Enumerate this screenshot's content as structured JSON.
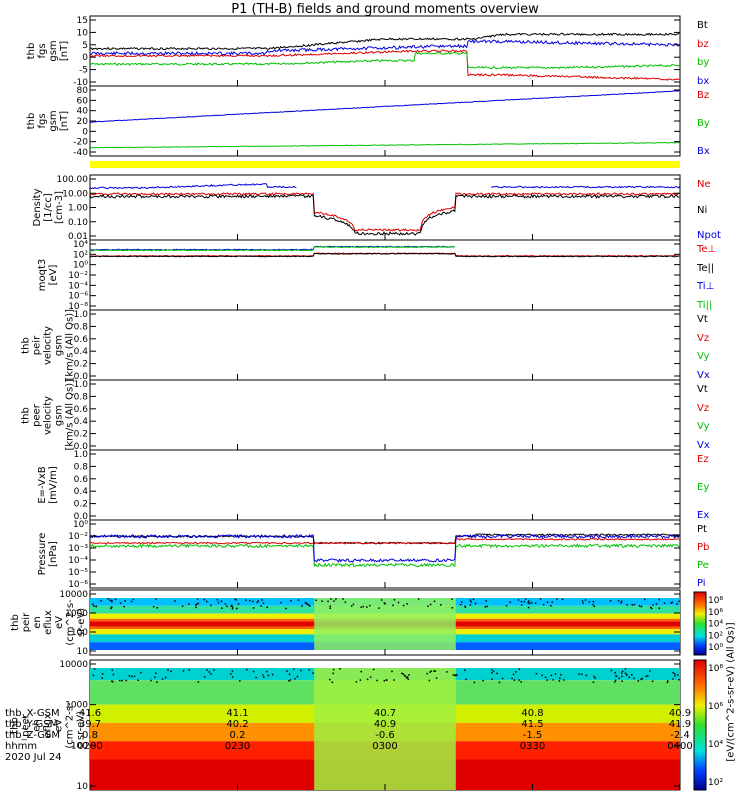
{
  "title": "P1 (TH-B) fields and ground moments overview",
  "panels": [
    {
      "id": "p1",
      "ylabel": [
        "thb",
        "fgs",
        "gsm",
        "[nT]"
      ],
      "ticks": [
        "15",
        "10",
        "5",
        "0",
        "-5",
        "-10"
      ],
      "legend": [
        {
          "t": "Bt",
          "c": "#000000"
        },
        {
          "t": "bz",
          "c": "#e00000"
        },
        {
          "t": "by",
          "c": "#00c000"
        },
        {
          "t": "bx",
          "c": "#0000e0"
        }
      ]
    },
    {
      "id": "p2",
      "ylabel": [
        "thb",
        "fgs",
        "gsm",
        "[nT]"
      ],
      "ticks": [
        "80",
        "60",
        "40",
        "20",
        "0",
        "-20",
        "-40"
      ],
      "legend": [
        {
          "t": "Bz",
          "c": "#e00000"
        },
        {
          "t": "By",
          "c": "#00c000"
        },
        {
          "t": "Bx",
          "c": "#0000e0"
        }
      ]
    },
    {
      "id": "p3",
      "ylabel": [
        "Density",
        "[1/cc]",
        "[cm-3]"
      ],
      "ticks": [
        "100.00",
        "10.00",
        "1.00",
        "0.10",
        "0.01"
      ],
      "legend": [
        {
          "t": "Ne",
          "c": "#e00000"
        },
        {
          "t": "Ni",
          "c": "#000000"
        },
        {
          "t": "Npot",
          "c": "#0000e0"
        }
      ]
    },
    {
      "id": "p4",
      "ylabel": [
        "moqt3",
        "[eV]"
      ],
      "ticks": [
        "10⁴",
        "10²",
        "10⁰",
        "10⁻²",
        "10⁻⁴",
        "10⁻⁶",
        "10⁻⁸"
      ],
      "legend": [
        {
          "t": "Te⊥",
          "c": "#e00000"
        },
        {
          "t": "Te||",
          "c": "#000000"
        },
        {
          "t": "Ti⊥",
          "c": "#0000e0"
        },
        {
          "t": "Ti||",
          "c": "#00c000"
        }
      ]
    },
    {
      "id": "p5",
      "ylabel": [
        "thb",
        "peir",
        "velocity",
        "gsm",
        "[km/s (All Qs)]"
      ],
      "ticks": [
        "1.0",
        "0.8",
        "0.6",
        "0.4",
        "0.2",
        "0.0"
      ],
      "legend": [
        {
          "t": "Vt",
          "c": "#000000"
        },
        {
          "t": "Vz",
          "c": "#e00000"
        },
        {
          "t": "Vy",
          "c": "#00c000"
        },
        {
          "t": "Vx",
          "c": "#0000e0"
        }
      ]
    },
    {
      "id": "p6",
      "ylabel": [
        "thb",
        "peer",
        "velocity",
        "gsm",
        "[km/s (All Qs)]"
      ],
      "ticks": [
        "1.0",
        "0.8",
        "0.6",
        "0.4",
        "0.2",
        "0.0"
      ],
      "legend": [
        {
          "t": "Vt",
          "c": "#000000"
        },
        {
          "t": "Vz",
          "c": "#e00000"
        },
        {
          "t": "Vy",
          "c": "#00c000"
        },
        {
          "t": "Vx",
          "c": "#0000e0"
        }
      ]
    },
    {
      "id": "p7",
      "ylabel": [
        "E=-VxB",
        "[mV/m]"
      ],
      "ticks": [
        "1.0",
        "0.8",
        "0.6",
        "0.4",
        "0.2",
        "0.0"
      ],
      "legend": [
        {
          "t": "Ez",
          "c": "#e00000"
        },
        {
          "t": "Ey",
          "c": "#00c000"
        },
        {
          "t": "Ex",
          "c": "#0000e0"
        }
      ]
    },
    {
      "id": "p8",
      "ylabel": [
        "Pressure",
        "[nPa]"
      ],
      "ticks": [
        "10⁰",
        "10⁻²",
        "10⁻³",
        "10⁻⁴",
        "10⁻⁵",
        "10⁻⁶"
      ],
      "legend": [
        {
          "t": "Pt",
          "c": "#000000"
        },
        {
          "t": "Pb",
          "c": "#e00000"
        },
        {
          "t": "Pe",
          "c": "#00c000"
        },
        {
          "t": "Pi",
          "c": "#0000e0"
        }
      ]
    },
    {
      "id": "p9",
      "ylabel": [
        "thb",
        "peir",
        "en",
        "eflux",
        "eV",
        "(cm^2-s-",
        "sr-eV)"
      ],
      "ticks": [
        "10000",
        "1000",
        "100",
        "10"
      ],
      "legend": []
    },
    {
      "id": "p10",
      "ylabel": [
        "thb",
        "peer",
        "en",
        "eflux",
        "eV",
        "(cm^2-s-",
        "sr-eV)"
      ],
      "ticks": [
        "10000",
        "1000",
        "100",
        "10"
      ],
      "legend": []
    }
  ],
  "colorbars": [
    {
      "ticks": [
        "10⁸",
        "10⁶",
        "10⁴",
        "10²",
        "10⁰"
      ]
    },
    {
      "ticks": [
        "10⁸",
        "10⁶",
        "10⁴",
        "10²"
      ]
    }
  ],
  "colorbar_label": "[eV/(cm^2-s-sr-eV) (All Qs)]",
  "ephemeris": {
    "labels": [
      "thb_X-GSM",
      "thb_Y-GSM",
      "thb_Z-GSM",
      "hhmm",
      "2020 Jul 24"
    ],
    "columns": [
      [
        "41.6",
        "39.7",
        "0.8",
        "0200"
      ],
      [
        "41.1",
        "40.2",
        "0.2",
        "0230"
      ],
      [
        "40.7",
        "40.9",
        "-0.6",
        "0300"
      ],
      [
        "40.8",
        "41.5",
        "-1.5",
        "0330"
      ],
      [
        "40.9",
        "41.9",
        "-2.4",
        "0400"
      ]
    ]
  },
  "chart_data": [
    {
      "type": "line",
      "title": "P1 (TH-B) fields and ground moments overview",
      "ylabel": "thb fgs gsm [nT]",
      "x": [
        "0200",
        "0230",
        "0300",
        "0330",
        "0400"
      ],
      "ylim": [
        -10,
        16
      ],
      "series": [
        {
          "name": "Bt",
          "values": [
            4.5,
            6,
            8,
            10,
            11
          ]
        },
        {
          "name": "bz",
          "values": [
            1,
            1,
            4,
            -8,
            -9
          ]
        },
        {
          "name": "by",
          "values": [
            -2.5,
            -2,
            2,
            -4,
            -3
          ]
        },
        {
          "name": "bx",
          "values": [
            2,
            3,
            5,
            5,
            6
          ]
        }
      ]
    },
    {
      "type": "line",
      "ylabel": "thb fgs gsm [nT]",
      "x": [
        "0200",
        "0230",
        "0300",
        "0330",
        "0400"
      ],
      "ylim": [
        -55,
        90
      ],
      "series": [
        {
          "name": "Bz",
          "values": [
            0,
            0,
            0,
            0,
            0
          ]
        },
        {
          "name": "By",
          "values": [
            -45,
            -43,
            -38,
            -35,
            -33
          ]
        },
        {
          "name": "Bx",
          "values": [
            15,
            30,
            45,
            65,
            88
          ]
        }
      ]
    },
    {
      "type": "line",
      "ylabel": "Density [1/cc] [cm-3]",
      "x": [
        "0200",
        "0230",
        "0300",
        "0330",
        "0400"
      ],
      "scale": "log",
      "ylim": [
        0.01,
        300
      ],
      "series": [
        {
          "name": "Ne",
          "values": [
            20,
            18,
            0.03,
            20,
            18
          ]
        },
        {
          "name": "Ni",
          "values": [
            12,
            11,
            0.02,
            13,
            12
          ]
        },
        {
          "name": "Npot",
          "values": [
            50,
            120,
            null,
            80,
            70
          ]
        }
      ]
    },
    {
      "type": "line",
      "ylabel": "moqt3 [eV]",
      "x": [
        "0200",
        "0230",
        "0300",
        "0330",
        "0400"
      ],
      "scale": "log",
      "series": [
        {
          "name": "Te⊥",
          "values": [
            50,
            50,
            200,
            50,
            50
          ]
        },
        {
          "name": "Te||",
          "values": [
            40,
            40,
            180,
            40,
            40
          ]
        },
        {
          "name": "Ti⊥",
          "values": [
            500,
            500,
            2000,
            null,
            null
          ]
        },
        {
          "name": "Ti||",
          "values": [
            400,
            400,
            1800,
            null,
            null
          ]
        }
      ]
    },
    {
      "type": "line",
      "ylabel": "thb peir velocity gsm [km/s (All Qs)]",
      "ylim": [
        0,
        1
      ],
      "series": []
    },
    {
      "type": "line",
      "ylabel": "thb peer velocity gsm [km/s (All Qs)]",
      "ylim": [
        0,
        1
      ],
      "series": []
    },
    {
      "type": "line",
      "ylabel": "E=-VxB [mV/m]",
      "ylim": [
        0,
        1
      ],
      "series": []
    },
    {
      "type": "line",
      "ylabel": "Pressure [nPa]",
      "x": [
        "0200",
        "0230",
        "0300",
        "0330",
        "0400"
      ],
      "scale": "log",
      "series": [
        {
          "name": "Pt",
          "values": [
            0.1,
            0.1,
            0.02,
            0.15,
            0.15
          ]
        },
        {
          "name": "Pb",
          "values": [
            0.02,
            0.02,
            0.015,
            0.05,
            0.06
          ]
        },
        {
          "name": "Pe",
          "values": [
            0.01,
            0.01,
            0.0001,
            0.01,
            0.01
          ]
        },
        {
          "name": "Pi",
          "values": [
            0.1,
            0.1,
            0.0003,
            0.12,
            0.12
          ]
        }
      ]
    },
    {
      "type": "heatmap",
      "ylabel": "thb peir en eflux",
      "x": [
        "0200",
        "0230",
        "0300",
        "0330",
        "0400"
      ],
      "yticks": [
        "10000",
        "1000",
        "100",
        "10"
      ]
    },
    {
      "type": "heatmap",
      "ylabel": "thb peer en eflux",
      "x": [
        "0200",
        "0230",
        "0300",
        "0330",
        "0400"
      ],
      "yticks": [
        "10000",
        "1000",
        "100",
        "10"
      ]
    }
  ]
}
